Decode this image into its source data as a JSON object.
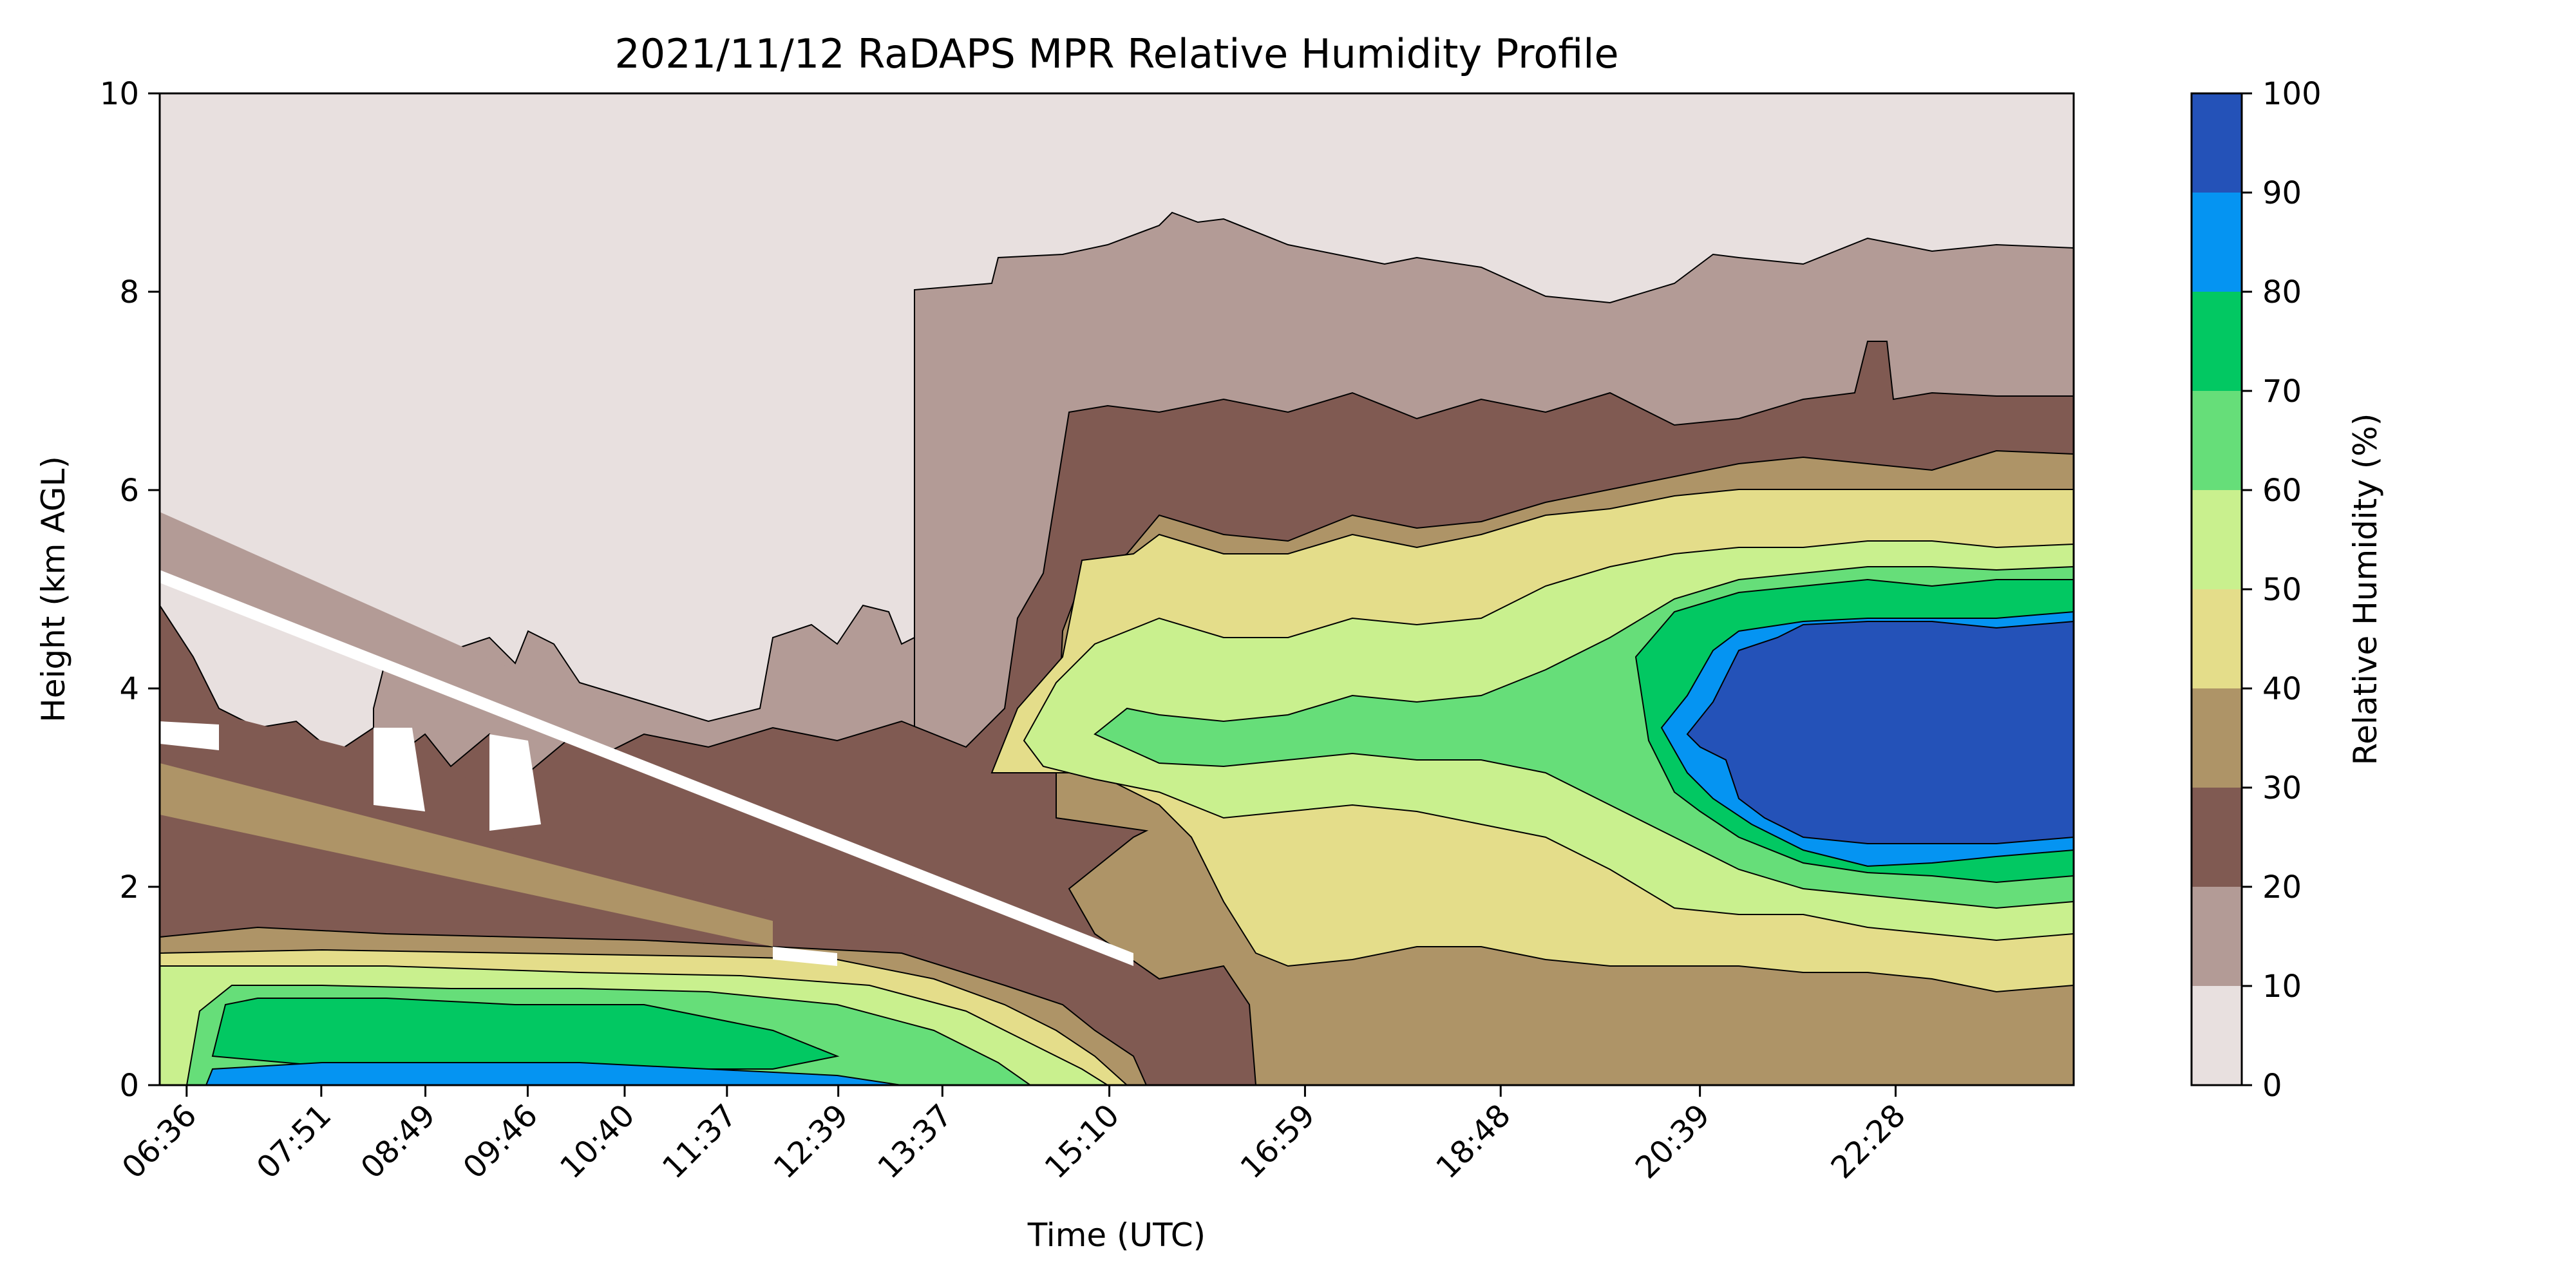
{
  "chart_data": {
    "type": "heatmap",
    "title": "2021/11/12 RaDAPS MPR Relative Humidity Profile",
    "xlabel": "Time (UTC)",
    "ylabel": "Height (km AGL)",
    "colorbar_label": "Relative Humidity (%)",
    "x_ticks": [
      "06:36",
      "07:51",
      "08:49",
      "09:46",
      "10:40",
      "11:37",
      "12:39",
      "13:37",
      "15:10",
      "16:59",
      "18:48",
      "20:39",
      "22:28"
    ],
    "x_tick_hours": [
      6.6,
      7.85,
      8.8167,
      9.7667,
      10.6667,
      11.6167,
      12.65,
      13.6167,
      15.1667,
      16.9833,
      18.8,
      20.65,
      22.4667
    ],
    "xlim": [
      6.35,
      24.12
    ],
    "ylim": [
      0,
      10
    ],
    "y_ticks": [
      "0",
      "2",
      "4",
      "6",
      "8",
      "10"
    ],
    "colorbar_ticks": [
      "0",
      "10",
      "20",
      "30",
      "40",
      "50",
      "60",
      "70",
      "80",
      "90",
      "100"
    ],
    "levels": [
      0,
      10,
      20,
      30,
      40,
      50,
      60,
      70,
      80,
      90,
      100
    ],
    "level_colors": [
      "#e8e0df",
      "#b39b96",
      "#805a52",
      "#ae9467",
      "#e4dd8a",
      "#c9f08e",
      "#66de79",
      "#02c862",
      "#0594f2",
      "#2452b8"
    ],
    "grid": false
  }
}
